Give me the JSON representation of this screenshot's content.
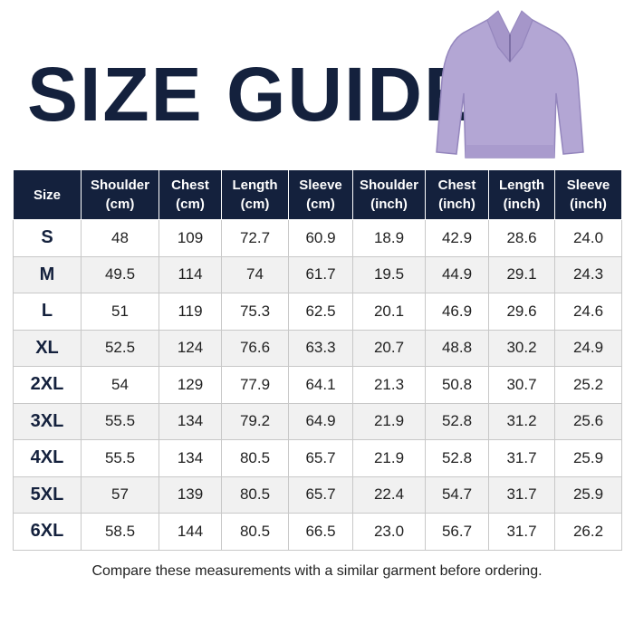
{
  "title": "SIZE GUIDE",
  "table": {
    "header": [
      "Size",
      "Shoulder (cm)",
      "Chest (cm)",
      "Length (cm)",
      "Sleeve (cm)",
      "Shoulder (inch)",
      "Chest (inch)",
      "Length (inch)",
      "Sleeve (inch)"
    ],
    "rows": [
      [
        "S",
        "48",
        "109",
        "72.7",
        "60.9",
        "18.9",
        "42.9",
        "28.6",
        "24.0"
      ],
      [
        "M",
        "49.5",
        "114",
        "74",
        "61.7",
        "19.5",
        "44.9",
        "29.1",
        "24.3"
      ],
      [
        "L",
        "51",
        "119",
        "75.3",
        "62.5",
        "20.1",
        "46.9",
        "29.6",
        "24.6"
      ],
      [
        "XL",
        "52.5",
        "124",
        "76.6",
        "63.3",
        "20.7",
        "48.8",
        "30.2",
        "24.9"
      ],
      [
        "2XL",
        "54",
        "129",
        "77.9",
        "64.1",
        "21.3",
        "50.8",
        "30.7",
        "25.2"
      ],
      [
        "3XL",
        "55.5",
        "134",
        "79.2",
        "64.9",
        "21.9",
        "52.8",
        "31.2",
        "25.6"
      ],
      [
        "4XL",
        "55.5",
        "134",
        "80.5",
        "65.7",
        "21.9",
        "52.8",
        "31.7",
        "25.9"
      ],
      [
        "5XL",
        "57",
        "139",
        "80.5",
        "65.7",
        "22.4",
        "54.7",
        "31.7",
        "25.9"
      ],
      [
        "6XL",
        "58.5",
        "144",
        "80.5",
        "66.5",
        "23.0",
        "56.7",
        "31.7",
        "26.2"
      ]
    ]
  },
  "footer": "Compare these measurements with a similar garment before ordering."
}
